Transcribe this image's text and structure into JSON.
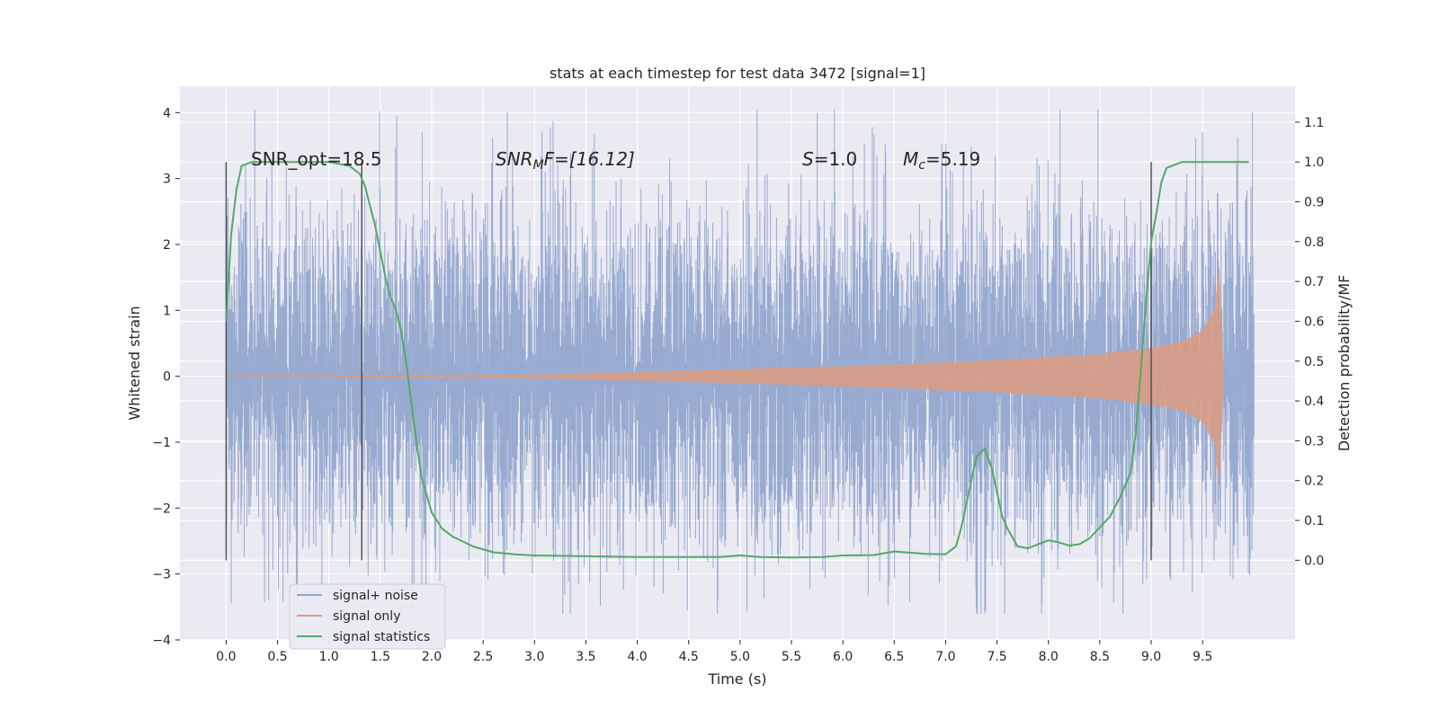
{
  "chart_data": {
    "type": "line",
    "title": "stats at each timestep for test data 3472 [signal=1]",
    "xlabel": "Time (s)",
    "ylabel_left": "Whitened strain",
    "ylabel_right": "Detection probability/MF",
    "xlim": [
      -0.45,
      10.4
    ],
    "ylim_left": [
      -4,
      4.4
    ],
    "ylim_right": [
      -0.2,
      1.19
    ],
    "x_ticks": [
      "0.0",
      "0.5",
      "1.0",
      "1.5",
      "2.0",
      "2.5",
      "3.0",
      "3.5",
      "4.0",
      "4.5",
      "5.0",
      "5.5",
      "6.0",
      "6.5",
      "7.0",
      "7.5",
      "8.0",
      "8.5",
      "9.0",
      "9.5"
    ],
    "y_ticks_left": [
      "4",
      "3",
      "2",
      "1",
      "0",
      "−1",
      "−2",
      "−3",
      "−4"
    ],
    "y_ticks_right": [
      "1.1",
      "1.0",
      "0.9",
      "0.8",
      "0.7",
      "0.6",
      "0.5",
      "0.4",
      "0.3",
      "0.2",
      "0.1",
      "0.0"
    ],
    "grid": true,
    "legend_position": "lower-left",
    "annotations": {
      "snr_opt": "SNR_opt=18.5",
      "snr_mf_base": "SNR",
      "snr_mf_sub": "M",
      "snr_mf_rest": "F=[16.12]",
      "s_var": "S",
      "s_rest": "=1.0",
      "mc_var": "M",
      "mc_sub": "c",
      "mc_rest": "=5.19"
    },
    "vertical_markers_s": [
      0.0,
      1.32,
      9.0
    ],
    "series": [
      {
        "name": "signal+ noise",
        "color": "#8fa3cc",
        "x_range": [
          0.0,
          10.0
        ],
        "band_sigma": 1.4,
        "peak_abs": 4.05
      },
      {
        "name": "signal only",
        "color": "#dd9c80",
        "x_range": [
          0.0,
          9.7
        ],
        "envelope": [
          [
            0.0,
            0.0
          ],
          [
            3.0,
            0.02
          ],
          [
            5.0,
            0.1
          ],
          [
            6.5,
            0.17
          ],
          [
            7.5,
            0.24
          ],
          [
            8.5,
            0.33
          ],
          [
            9.0,
            0.42
          ],
          [
            9.3,
            0.52
          ],
          [
            9.5,
            0.68
          ],
          [
            9.62,
            1.0
          ],
          [
            9.66,
            1.65
          ],
          [
            9.7,
            0.05
          ]
        ]
      },
      {
        "name": "signal statistics",
        "color": "#55a868",
        "x": [
          0.0,
          0.05,
          0.1,
          0.15,
          0.25,
          0.5,
          0.8,
          1.0,
          1.1,
          1.2,
          1.3,
          1.35,
          1.45,
          1.55,
          1.6,
          1.65,
          1.7,
          1.75,
          1.8,
          1.85,
          1.9,
          2.0,
          2.1,
          2.2,
          2.4,
          2.6,
          2.8,
          3.0,
          3.5,
          4.0,
          4.5,
          4.8,
          5.0,
          5.2,
          5.5,
          5.8,
          6.0,
          6.3,
          6.5,
          6.8,
          7.0,
          7.1,
          7.15,
          7.2,
          7.3,
          7.38,
          7.45,
          7.5,
          7.55,
          7.6,
          7.7,
          7.8,
          7.9,
          8.0,
          8.1,
          8.2,
          8.3,
          8.4,
          8.6,
          8.7,
          8.8,
          8.85,
          8.9,
          8.95,
          9.0,
          9.05,
          9.1,
          9.15,
          9.2,
          9.3,
          9.5,
          9.7,
          9.95
        ],
        "y": [
          0.6,
          0.82,
          0.93,
          0.99,
          1.0,
          1.0,
          1.0,
          1.0,
          0.995,
          0.99,
          0.97,
          0.94,
          0.84,
          0.71,
          0.66,
          0.63,
          0.58,
          0.5,
          0.4,
          0.3,
          0.21,
          0.12,
          0.08,
          0.06,
          0.035,
          0.02,
          0.015,
          0.012,
          0.01,
          0.008,
          0.008,
          0.008,
          0.012,
          0.008,
          0.007,
          0.008,
          0.012,
          0.013,
          0.022,
          0.016,
          0.015,
          0.035,
          0.08,
          0.14,
          0.26,
          0.28,
          0.23,
          0.17,
          0.11,
          0.08,
          0.035,
          0.03,
          0.04,
          0.05,
          0.045,
          0.037,
          0.04,
          0.055,
          0.11,
          0.16,
          0.22,
          0.32,
          0.48,
          0.65,
          0.8,
          0.87,
          0.95,
          0.985,
          0.99,
          1.0,
          1.0,
          1.0,
          1.0
        ]
      }
    ]
  }
}
